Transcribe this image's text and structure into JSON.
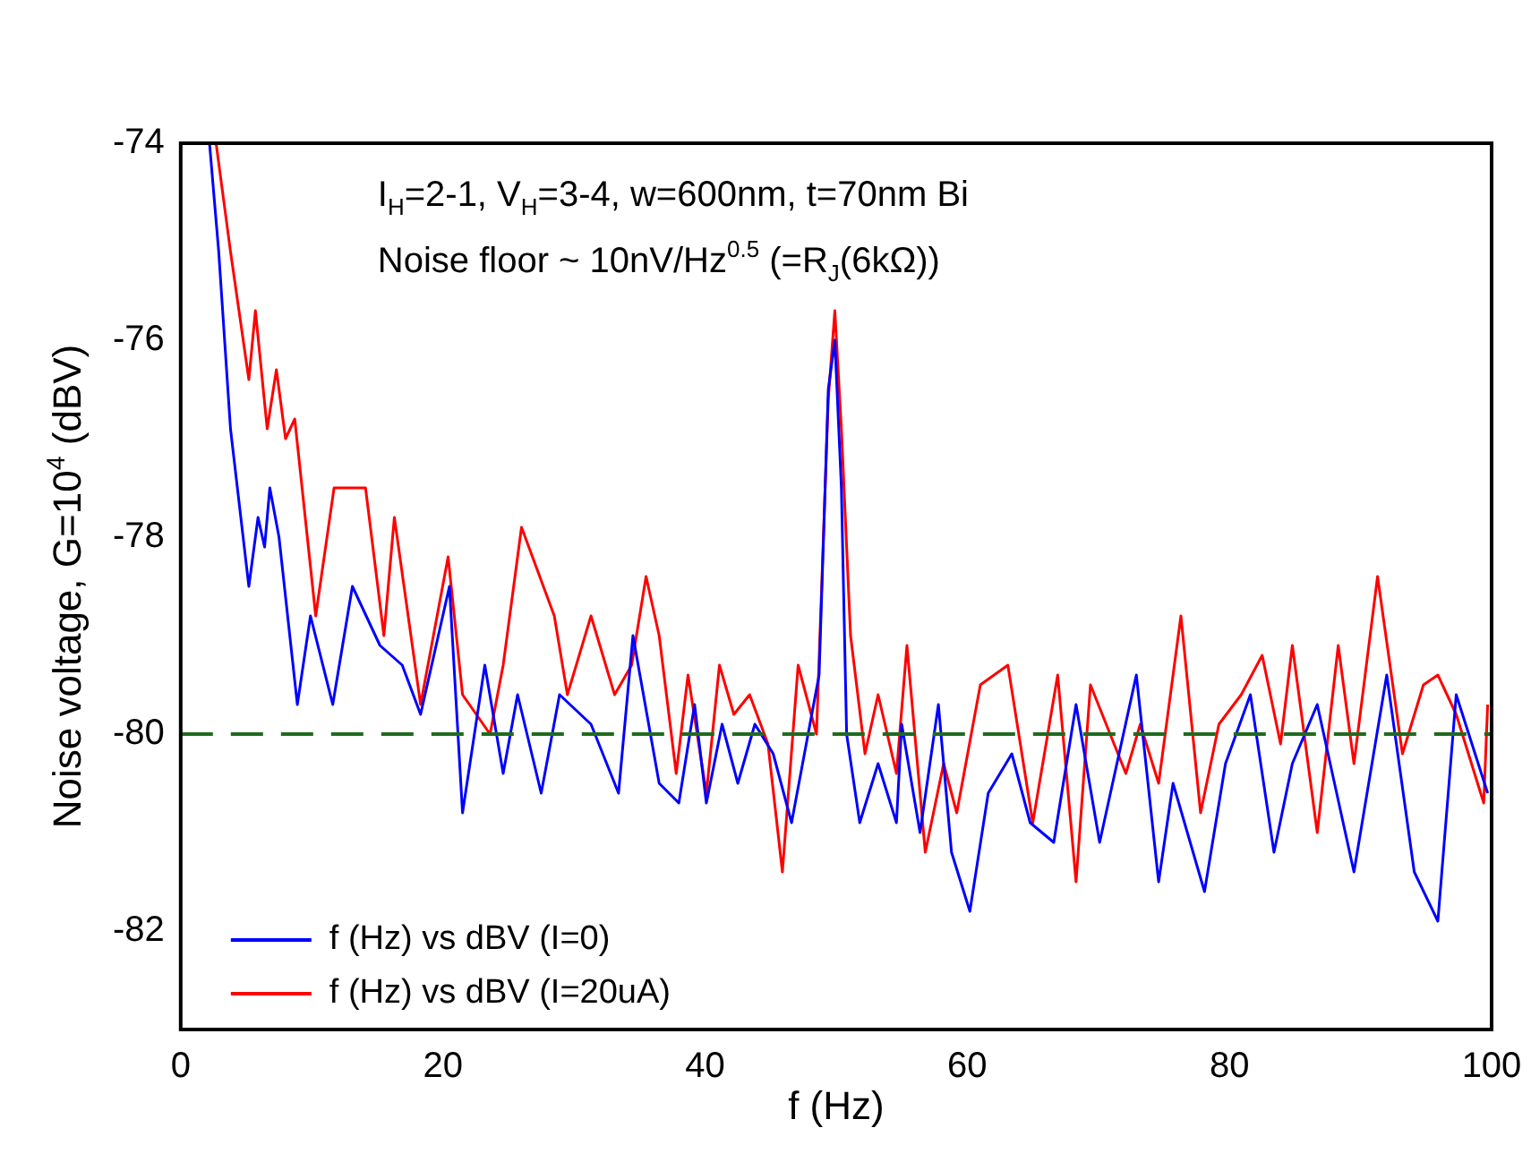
{
  "chart_data": {
    "type": "line",
    "xlabel": "f (Hz)",
    "ylabel": "Noise voltage, G=10$^{4}$ (dBV)",
    "annotations": [
      "I$_{H}$=2-1, V$_{H}$=3-4, w=600nm, t=70nm Bi",
      "Noise floor ~ 10nV/Hz$^{0.5}$ (=R$_{J}$(6kΩ))"
    ],
    "xlim": [
      0,
      100
    ],
    "xticks": [
      0,
      20,
      40,
      60,
      80,
      100
    ],
    "ylim": [
      -83,
      -74
    ],
    "yticks": [
      -82,
      -80,
      -78,
      -76,
      -74
    ],
    "grid": false,
    "legend": "bottom left",
    "marker": "none",
    "line_style": "solid",
    "ref_lines": [
      {
        "axis": "y",
        "value": -80,
        "color": "#1f6b1f",
        "line_style": "dashed"
      }
    ],
    "series": [
      {
        "name": "f (Hz) vs dBV (I=0)",
        "color": "#0000ff",
        "x": [
          2.2,
          2.9,
          3.8,
          5.2,
          5.9,
          6.4,
          6.8,
          7.5,
          8.9,
          9.9,
          11.6,
          13.1,
          15.2,
          16.9,
          18.3,
          20.5,
          21.5,
          23.2,
          24.6,
          25.7,
          27.5,
          28.9,
          31.3,
          33.4,
          34.5,
          36.5,
          38.0,
          39.2,
          40.1,
          41.3,
          42.5,
          43.8,
          45.2,
          46.6,
          48.7,
          49.4,
          49.9,
          50.4,
          50.8,
          51.8,
          53.2,
          54.6,
          55.0,
          56.4,
          57.8,
          58.8,
          60.2,
          61.6,
          63.4,
          64.8,
          66.6,
          68.3,
          70.1,
          72.9,
          74.6,
          75.7,
          78.1,
          79.7,
          81.6,
          83.4,
          84.8,
          86.7,
          89.5,
          92.0,
          94.1,
          95.9,
          97.3,
          99.7
        ],
        "values": [
          -74,
          -75.1,
          -76.9,
          -78.5,
          -77.8,
          -78.1,
          -77.5,
          -78.0,
          -79.7,
          -78.8,
          -79.7,
          -78.5,
          -79.1,
          -79.3,
          -79.8,
          -78.5,
          -80.8,
          -79.3,
          -80.4,
          -79.6,
          -80.6,
          -79.6,
          -79.9,
          -80.6,
          -79.0,
          -80.5,
          -80.7,
          -79.7,
          -80.7,
          -79.9,
          -80.5,
          -79.9,
          -80.2,
          -80.9,
          -79.4,
          -76.5,
          -76.0,
          -77.5,
          -80.0,
          -80.9,
          -80.3,
          -80.9,
          -79.9,
          -81.0,
          -79.7,
          -81.2,
          -81.8,
          -80.6,
          -80.2,
          -80.9,
          -81.1,
          -79.7,
          -81.1,
          -79.4,
          -81.5,
          -80.5,
          -81.6,
          -80.3,
          -79.6,
          -81.2,
          -80.3,
          -79.7,
          -81.4,
          -79.4,
          -81.4,
          -81.9,
          -79.6,
          -80.6
        ]
      },
      {
        "name": "f (Hz) vs dBV (I=20uA)",
        "color": "#ff0000",
        "x": [
          2.7,
          3.8,
          5.2,
          5.7,
          6.6,
          7.3,
          8.0,
          8.7,
          10.3,
          11.7,
          12.7,
          14.1,
          15.5,
          16.3,
          18.3,
          20.4,
          21.5,
          23.6,
          24.6,
          26.0,
          28.5,
          29.5,
          31.3,
          33.1,
          34.4,
          35.5,
          36.5,
          37.8,
          38.7,
          40.1,
          41.1,
          42.2,
          43.4,
          44.8,
          45.9,
          47.1,
          48.5,
          49.4,
          49.9,
          50.4,
          51.1,
          52.2,
          53.2,
          54.6,
          55.4,
          56.8,
          58.2,
          59.2,
          61.0,
          63.1,
          65.0,
          66.9,
          68.3,
          69.4,
          72.1,
          73.2,
          74.6,
          76.3,
          77.8,
          79.2,
          80.9,
          82.5,
          83.9,
          84.8,
          86.7,
          88.3,
          89.5,
          91.3,
          93.2,
          94.8,
          95.9,
          97.3,
          99.4,
          99.7
        ],
        "values": [
          -74,
          -75.1,
          -76.4,
          -75.7,
          -76.9,
          -76.3,
          -77.0,
          -76.8,
          -78.8,
          -77.5,
          -77.5,
          -77.5,
          -79.0,
          -77.8,
          -79.7,
          -78.2,
          -79.6,
          -80.0,
          -79.3,
          -77.9,
          -78.8,
          -79.6,
          -78.8,
          -79.6,
          -79.3,
          -78.4,
          -79.0,
          -80.4,
          -79.4,
          -80.6,
          -79.3,
          -79.8,
          -79.6,
          -80.1,
          -81.4,
          -79.3,
          -80.0,
          -76.6,
          -75.7,
          -76.9,
          -79.0,
          -80.2,
          -79.6,
          -80.4,
          -79.1,
          -81.2,
          -80.3,
          -80.8,
          -79.5,
          -79.3,
          -80.9,
          -79.4,
          -81.5,
          -79.5,
          -80.4,
          -79.9,
          -80.5,
          -78.8,
          -80.8,
          -79.9,
          -79.6,
          -79.2,
          -80.1,
          -79.1,
          -81.0,
          -79.1,
          -80.3,
          -78.4,
          -80.2,
          -79.5,
          -79.4,
          -79.8,
          -80.7,
          -79.7
        ]
      }
    ]
  }
}
